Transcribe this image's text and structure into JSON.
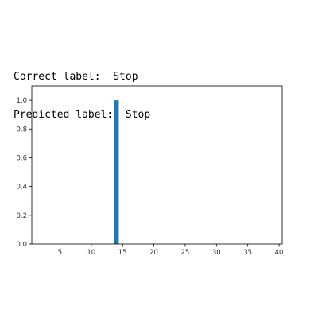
{
  "labels": {
    "correct_prefix": "Correct label:  ",
    "correct_value": "Stop",
    "predicted_prefix": "Predicted label:  ",
    "predicted_value": "Stop"
  },
  "chart_data": {
    "type": "bar",
    "x": [
      14
    ],
    "values": [
      1.0
    ],
    "title": "",
    "xlabel": "",
    "ylabel": "",
    "xlim": [
      0.5,
      40.5
    ],
    "ylim": [
      0.0,
      1.1
    ],
    "xticks": [
      5,
      10,
      15,
      20,
      25,
      30,
      35,
      40
    ],
    "yticks": [
      0.0,
      0.2,
      0.4,
      0.6,
      0.8,
      1.0
    ],
    "xtick_labels": [
      "5",
      "10",
      "15",
      "20",
      "25",
      "30",
      "35",
      "40"
    ],
    "ytick_labels": [
      "0.0",
      "0.2",
      "0.4",
      "0.6",
      "0.8",
      "1.0"
    ],
    "bar_color": "#1f77b4",
    "grid": false,
    "legend": "none"
  }
}
